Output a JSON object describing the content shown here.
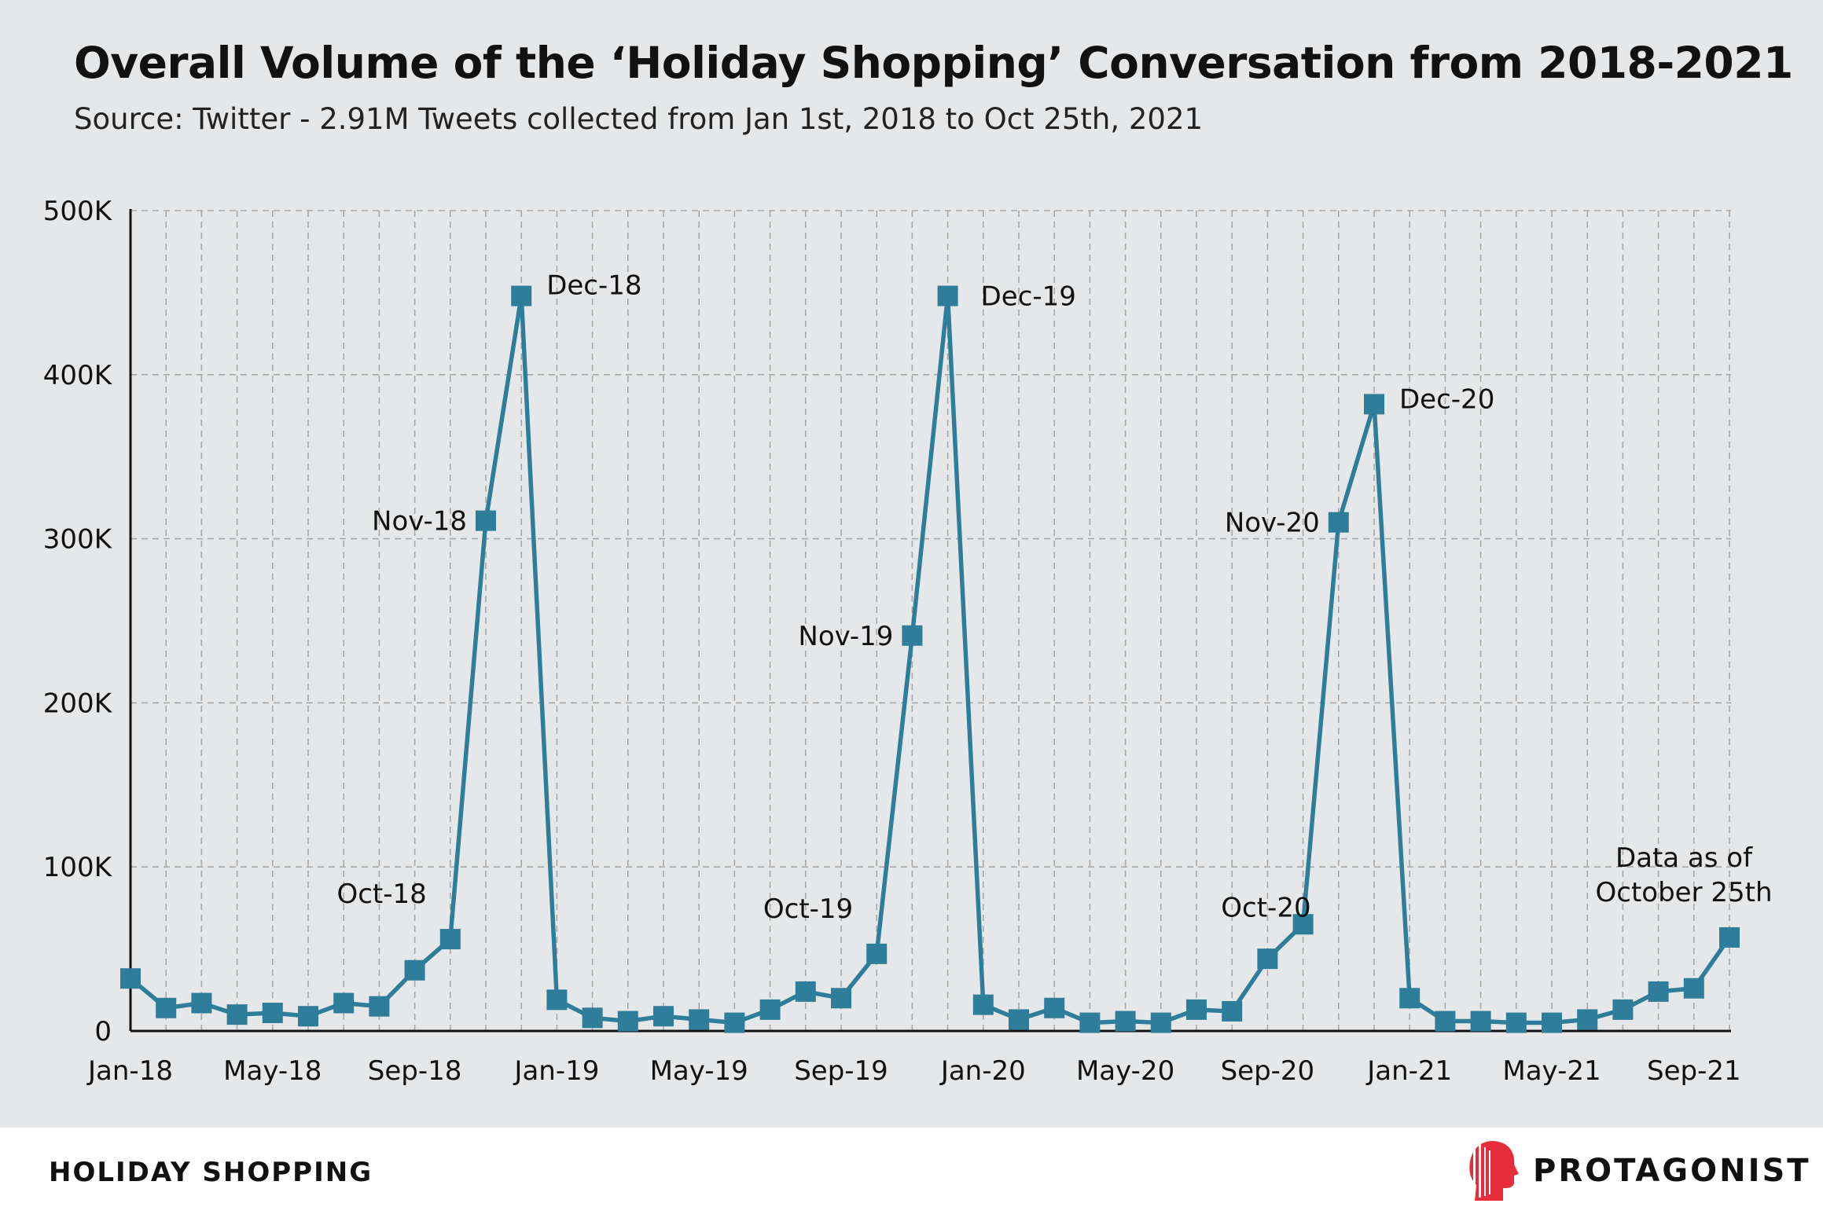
{
  "title": "Overall Volume of the ‘Holiday Shopping’ Conversation from 2018-2021",
  "subtitle": "Source: Twitter - 2.91M Tweets collected from Jan 1st, 2018 to Oct 25th, 2021",
  "footer": {
    "section_label": "HOLIDAY SHOPPING",
    "brand_name": "PROTAGONIST",
    "brand_icon": "protagonist-head-logo"
  },
  "colors": {
    "background_panel": "#e6e7e8",
    "series": "#2e7d9a",
    "grid": "#a8a8a8",
    "brand_red": "#e52d3b"
  },
  "chart_data": {
    "type": "line",
    "title": "Overall Volume of the ‘Holiday Shopping’ Conversation from 2018-2021",
    "xlabel": "",
    "ylabel": "",
    "ylim": [
      0,
      500000
    ],
    "yticks": [
      0,
      100000,
      200000,
      300000,
      400000,
      500000
    ],
    "ytick_labels": [
      "0",
      "100K",
      "200K",
      "300K",
      "400K",
      "500K"
    ],
    "xtick_labels": [
      "Jan-18",
      "May-18",
      "Sep-18",
      "Jan-19",
      "May-19",
      "Sep-19",
      "Jan-20",
      "May-20",
      "Sep-20",
      "Jan-21",
      "May-21",
      "Sep-21"
    ],
    "grid": true,
    "marker": "square",
    "x": [
      "Jan-18",
      "Feb-18",
      "Mar-18",
      "Apr-18",
      "May-18",
      "Jun-18",
      "Jul-18",
      "Aug-18",
      "Sep-18",
      "Oct-18",
      "Nov-18",
      "Dec-18",
      "Jan-19",
      "Feb-19",
      "Mar-19",
      "Apr-19",
      "May-19",
      "Jun-19",
      "Jul-19",
      "Aug-19",
      "Sep-19",
      "Oct-19",
      "Nov-19",
      "Dec-19",
      "Jan-20",
      "Feb-20",
      "Mar-20",
      "Apr-20",
      "May-20",
      "Jun-20",
      "Jul-20",
      "Aug-20",
      "Sep-20",
      "Oct-20",
      "Nov-20",
      "Dec-20",
      "Jan-21",
      "Feb-21",
      "Mar-21",
      "Apr-21",
      "May-21",
      "Jun-21",
      "Jul-21",
      "Aug-21",
      "Sep-21",
      "Oct-21"
    ],
    "series": [
      {
        "values": [
          32000,
          14000,
          17000,
          10000,
          11000,
          9000,
          17000,
          15000,
          37000,
          56000,
          311000,
          448000,
          19000,
          8000,
          6000,
          9000,
          7000,
          5000,
          13000,
          24000,
          20000,
          47000,
          241000,
          448000,
          16000,
          7000,
          14000,
          5000,
          6000,
          5000,
          13000,
          12000,
          44000,
          65000,
          310000,
          382000,
          20000,
          6000,
          6000,
          5000,
          5000,
          7000,
          13000,
          24000,
          26000,
          57000
        ]
      }
    ],
    "annotations": [
      {
        "x": "Oct-18",
        "text": "Oct-18"
      },
      {
        "x": "Nov-18",
        "text": "Nov-18"
      },
      {
        "x": "Dec-18",
        "text": "Dec-18"
      },
      {
        "x": "Oct-19",
        "text": "Oct-19"
      },
      {
        "x": "Nov-19",
        "text": "Nov-19"
      },
      {
        "x": "Dec-19",
        "text": "Dec-19"
      },
      {
        "x": "Oct-20",
        "text": "Oct-20"
      },
      {
        "x": "Nov-20",
        "text": "Nov-20"
      },
      {
        "x": "Dec-20",
        "text": "Dec-20"
      },
      {
        "x": "Oct-21",
        "text": "Data as of\nOctober 25th"
      }
    ]
  }
}
